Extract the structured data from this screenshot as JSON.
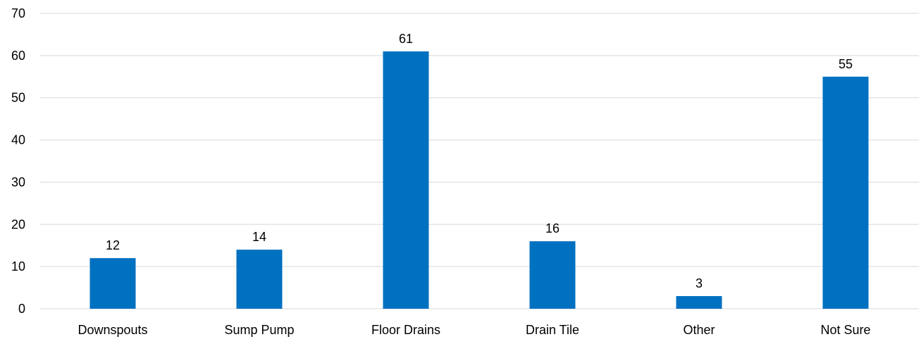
{
  "chart_data": {
    "type": "bar",
    "title": "",
    "xlabel": "",
    "ylabel": "",
    "categories": [
      "Downspouts",
      "Sump Pump",
      "Floor Drains",
      "Drain Tile",
      "Other",
      "Not Sure"
    ],
    "values": [
      12,
      14,
      61,
      16,
      3,
      55
    ],
    "data_labels": [
      "12",
      "14",
      "61",
      "16",
      "3",
      "55"
    ],
    "ylim": [
      0,
      70
    ],
    "yticks": [
      "0",
      "10",
      "20",
      "30",
      "40",
      "50",
      "60",
      "70"
    ],
    "grid": true,
    "legend": "none",
    "bar_color": "#0070C0",
    "grid_color": "#D9D9D9"
  }
}
